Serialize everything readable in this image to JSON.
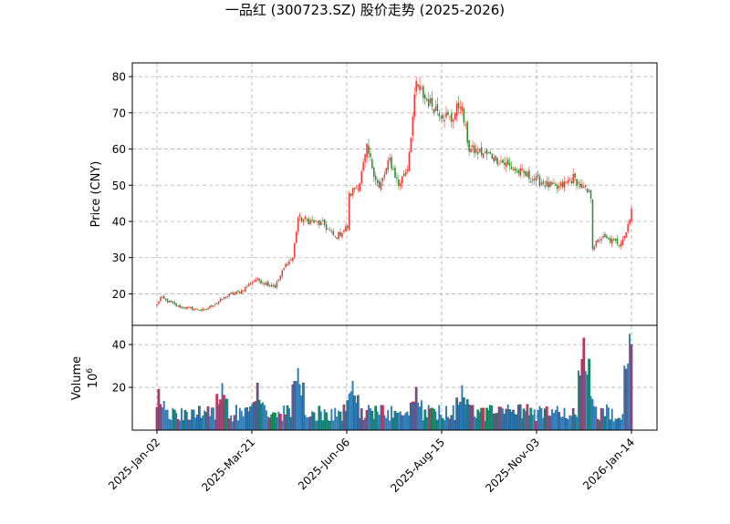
{
  "chart_data": {
    "type": "candlestick",
    "title": "一品红 (300723.SZ) 股价走势 (2025-2026)",
    "panels": [
      {
        "name": "price",
        "ylabel": "Price (CNY)",
        "ylim": [
          11.3,
          83.8
        ],
        "yticks": [
          20,
          30,
          40,
          50,
          60,
          70,
          80
        ],
        "grid": true
      },
      {
        "name": "volume",
        "ylabel": "Volume",
        "ylabel_multiplier": "10^6",
        "ylim": [
          0,
          49
        ],
        "yticks": [
          20,
          40
        ],
        "grid": true
      }
    ],
    "xlabel": "",
    "xticks": [
      "2025-Jan-02",
      "2025-Mar-21",
      "2025-Jun-06",
      "2025-Aug-15",
      "2025-Nov-03",
      "2026-Jan-14"
    ],
    "colors": {
      "up": "#ff3333",
      "down": "#2e8b2e",
      "volume_fill": "#2e7bb5",
      "volume_edge_up": "#dc143c",
      "volume_edge_down": "#008040",
      "grid": "#b0b0b0"
    },
    "price_path_keypoints": [
      {
        "date": "2025-01-02",
        "close": 17.0
      },
      {
        "date": "2025-01-06",
        "close": 19.0
      },
      {
        "date": "2025-01-20",
        "close": 16.5
      },
      {
        "date": "2025-02-10",
        "close": 15.5
      },
      {
        "date": "2025-03-03",
        "close": 20.0
      },
      {
        "date": "2025-03-10",
        "close": 20.5
      },
      {
        "date": "2025-03-21",
        "close": 24.0
      },
      {
        "date": "2025-04-07",
        "close": 22.0
      },
      {
        "date": "2025-04-15",
        "close": 28.0
      },
      {
        "date": "2025-04-21",
        "close": 30.0
      },
      {
        "date": "2025-04-24",
        "close": 41.0
      },
      {
        "date": "2025-05-15",
        "close": 39.0
      },
      {
        "date": "2025-05-23",
        "close": 35.5
      },
      {
        "date": "2025-06-03",
        "close": 38.5
      },
      {
        "date": "2025-06-04",
        "close": 47.0
      },
      {
        "date": "2025-06-12",
        "close": 51.0
      },
      {
        "date": "2025-06-18",
        "close": 60.0
      },
      {
        "date": "2025-06-27",
        "close": 49.0
      },
      {
        "date": "2025-07-07",
        "close": 57.0
      },
      {
        "date": "2025-07-14",
        "close": 50.0
      },
      {
        "date": "2025-07-21",
        "close": 55.0
      },
      {
        "date": "2025-07-28",
        "close": 78.0
      },
      {
        "date": "2025-08-04",
        "close": 74.0
      },
      {
        "date": "2025-08-15",
        "close": 70.0
      },
      {
        "date": "2025-08-25",
        "close": 68.0
      },
      {
        "date": "2025-09-01",
        "close": 73.0
      },
      {
        "date": "2025-09-08",
        "close": 60.0
      },
      {
        "date": "2025-09-25",
        "close": 58.0
      },
      {
        "date": "2025-10-15",
        "close": 54.0
      },
      {
        "date": "2025-11-03",
        "close": 51.0
      },
      {
        "date": "2025-11-17",
        "close": 49.0
      },
      {
        "date": "2025-11-28",
        "close": 52.0
      },
      {
        "date": "2025-12-12",
        "close": 47.0
      },
      {
        "date": "2025-12-15",
        "close": 33.0
      },
      {
        "date": "2025-12-22",
        "close": 35.5
      },
      {
        "date": "2026-01-05",
        "close": 34.0
      },
      {
        "date": "2026-01-09",
        "close": 37.0
      },
      {
        "date": "2026-01-13",
        "close": 41.5
      },
      {
        "date": "2026-01-14",
        "close": 44.0
      }
    ],
    "volume_keypoints_millions": [
      {
        "date": "2025-01-03",
        "value": 19
      },
      {
        "date": "2025-02-24",
        "value": 22
      },
      {
        "date": "2025-03-24",
        "value": 22
      },
      {
        "date": "2025-04-24",
        "value": 29
      },
      {
        "date": "2025-06-06",
        "value": 23
      },
      {
        "date": "2025-07-28",
        "value": 20
      },
      {
        "date": "2025-09-02",
        "value": 21
      },
      {
        "date": "2025-12-08",
        "value": 43
      },
      {
        "date": "2025-12-10",
        "value": 26
      },
      {
        "date": "2026-01-13",
        "value": 45
      },
      {
        "date": "2026-01-14",
        "value": 40
      }
    ],
    "n_trading_days": 254
  }
}
